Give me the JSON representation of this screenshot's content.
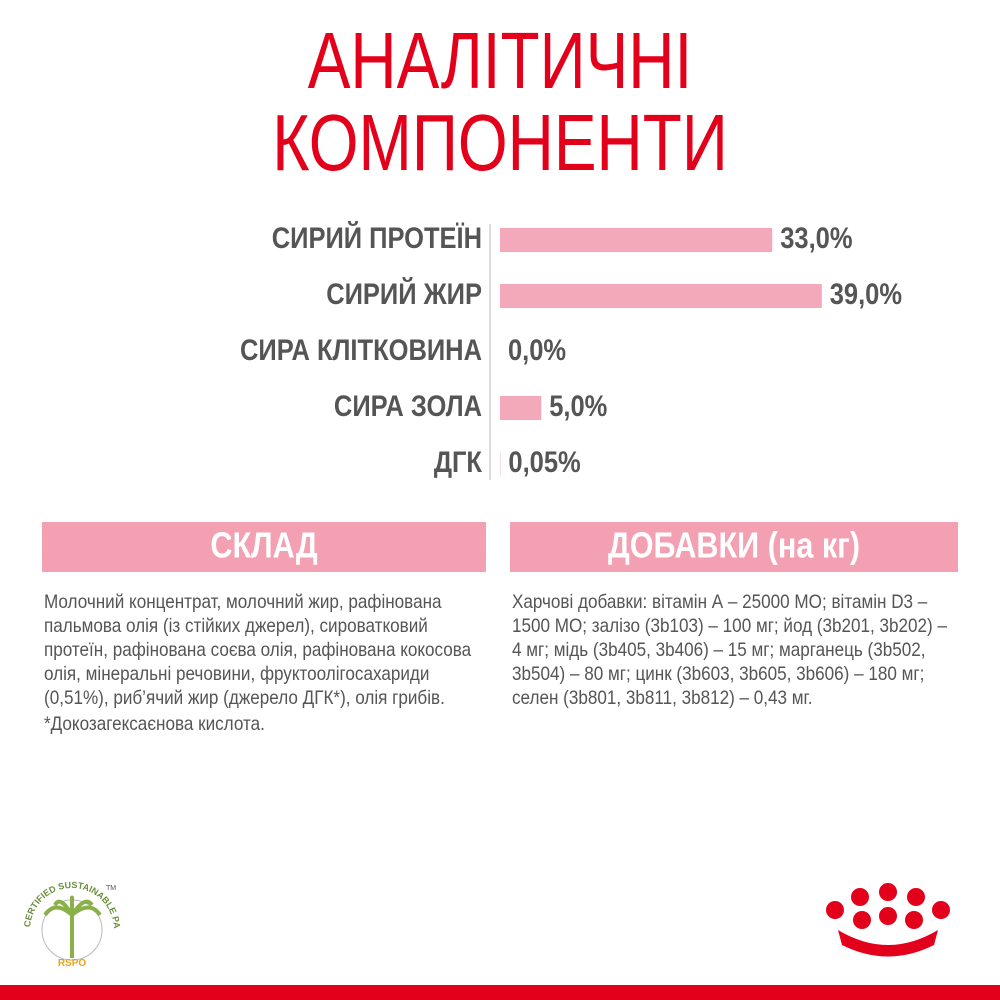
{
  "title": [
    "АНАЛІТИЧНІ",
    "КОМПОНЕНТИ"
  ],
  "chart_data": {
    "type": "bar",
    "orientation": "horizontal",
    "categories": [
      "СИРИЙ ПРОТЕЇН",
      "СИРИЙ ЖИР",
      "СИРА КЛІТКОВИНА",
      "СИРА ЗОЛА",
      "ДГК"
    ],
    "values": [
      33.0,
      39.0,
      0.0,
      5.0,
      0.05
    ],
    "value_labels": [
      "33,0%",
      "39,0%",
      "0,0%",
      "5,0%",
      "0,05%"
    ],
    "color": "#f4a9bb",
    "xlim": [
      0,
      40
    ]
  },
  "composition": {
    "heading": "СКЛАД",
    "lines": [
      "Молочний концентрат, молочний жир, рафінована",
      "пальмова олія (із стійких джерел), сироватковий",
      "протеїн, рафінована соєва олія, рафінована кокосова",
      "олія, мінеральні речовини, фруктоолігосахариди",
      "(0,51%), риб’ячий жир (джерело ДГК*), олія грибів."
    ],
    "footnote": "*Докозагексаєнова кислота."
  },
  "additives": {
    "heading": "ДОБАВКИ (на кг)",
    "lines": [
      "Харчові добавки: вітамін А – 25000 МО; вітамін D3 –",
      "1500 МО; залізо (3b103) – 100 мг; йод (3b201, 3b202) –",
      "4 мг; мідь (3b405, 3b406) – 15 мг; марганець (3b502,",
      "3b504) – 80 мг; цинк (3b603, 3b605, 3b606) – 180 мг;",
      "селен (3b801, 3b811, 3b812) – 0,43 мг."
    ]
  },
  "rspo": {
    "ring": "CERTIFIED SUSTAINABLE PALM OIL",
    "mark": "RSPO",
    "tm": "TM"
  }
}
